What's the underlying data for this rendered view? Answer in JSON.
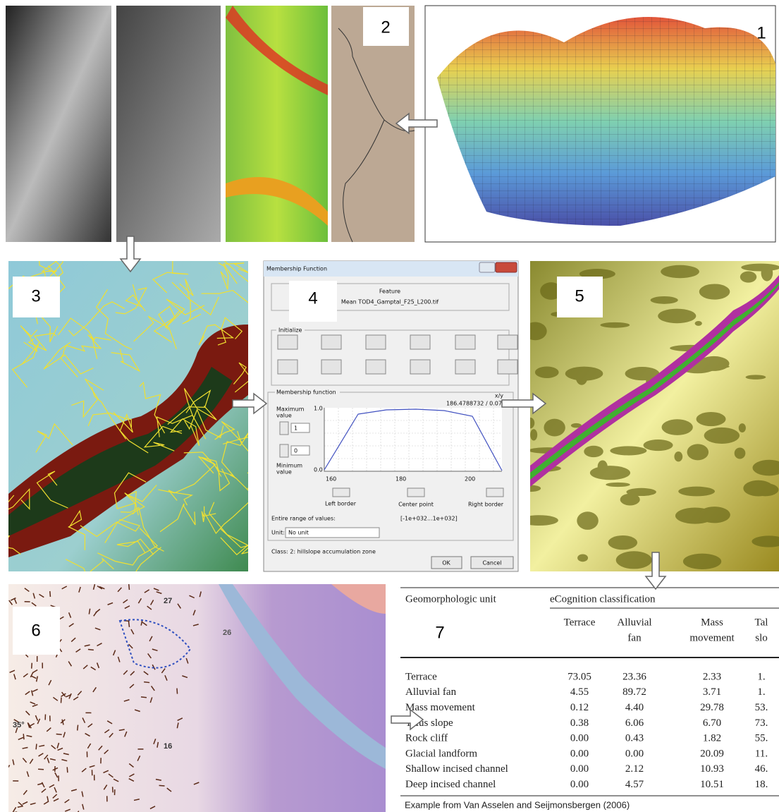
{
  "panels": {
    "labels": [
      "1",
      "2",
      "3",
      "4",
      "5",
      "6",
      "7"
    ]
  },
  "dialog": {
    "title": "Membership Function",
    "feature_header": "Feature",
    "feature_name": "Mean TOD4_Gamptal_F25_L200.tif",
    "initialize": "Initialize",
    "membership_function": "Membership function",
    "xy": "x/y",
    "readout": "186.4788732 / 0.07",
    "max_label": [
      "Maximum",
      "value"
    ],
    "max_value": "1",
    "min_value": "0",
    "min_label": [
      "Minimum",
      "value"
    ],
    "y_top": "1.0",
    "y_bottom": "0.0",
    "x_ticks": [
      "160",
      "180",
      "200"
    ],
    "left_border": "Left border",
    "center_point": "Center point",
    "right_border": "Right border",
    "entire_range": "Entire range of values:",
    "range": "[-1e+032...1e+032]",
    "unit_label": "Unit:",
    "unit": "No unit",
    "class": "Class: 2: hillslope accumulation zone",
    "ok": "OK",
    "cancel": "Cancel"
  },
  "map_labels": [
    "27",
    "35°",
    "26",
    "16"
  ],
  "table": {
    "header": "Geomorphologic unit",
    "group": "eCognition classification",
    "columns": [
      [
        "Terrace"
      ],
      [
        "Alluvial",
        "fan"
      ],
      [
        "Mass",
        "movement"
      ],
      [
        "Tal",
        "slo"
      ]
    ],
    "rows": [
      [
        "Terrace",
        "73.05",
        "23.36",
        "2.33",
        "1."
      ],
      [
        "Alluvial fan",
        "4.55",
        "89.72",
        "3.71",
        "1."
      ],
      [
        "Mass movement",
        "0.12",
        "4.40",
        "29.78",
        "53."
      ],
      [
        "Talus slope",
        "0.38",
        "6.06",
        "6.70",
        "73."
      ],
      [
        "Rock cliff",
        "0.00",
        "0.43",
        "1.82",
        "55."
      ],
      [
        "Glacial landform",
        "0.00",
        "0.00",
        "20.09",
        "11."
      ],
      [
        "Shallow incised channel",
        "0.00",
        "2.12",
        "10.93",
        "46."
      ],
      [
        "Deep incised channel",
        "0.00",
        "4.57",
        "10.51",
        "18."
      ]
    ],
    "caption": "Example  from Van Asselen and Seijmonsbergen (2006)"
  }
}
